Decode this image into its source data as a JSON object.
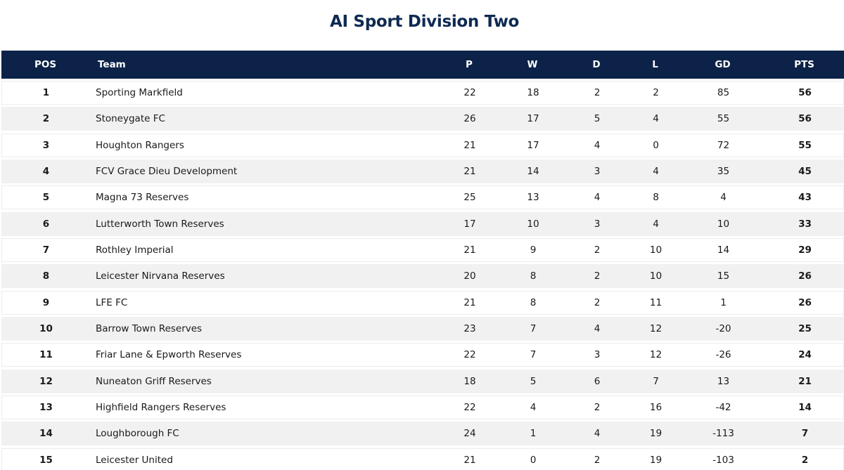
{
  "title": "AI Sport Division Two",
  "headers": {
    "pos": "POS",
    "team": "Team",
    "p": "P",
    "w": "W",
    "d": "D",
    "l": "L",
    "gd": "GD",
    "pts": "PTS"
  },
  "rows": [
    {
      "pos": "1",
      "team": "Sporting Markfield",
      "p": "22",
      "w": "18",
      "d": "2",
      "l": "2",
      "gd": "85",
      "pts": "56"
    },
    {
      "pos": "2",
      "team": "Stoneygate FC",
      "p": "26",
      "w": "17",
      "d": "5",
      "l": "4",
      "gd": "55",
      "pts": "56"
    },
    {
      "pos": "3",
      "team": "Houghton Rangers",
      "p": "21",
      "w": "17",
      "d": "4",
      "l": "0",
      "gd": "72",
      "pts": "55"
    },
    {
      "pos": "4",
      "team": "FCV Grace Dieu Development",
      "p": "21",
      "w": "14",
      "d": "3",
      "l": "4",
      "gd": "35",
      "pts": "45"
    },
    {
      "pos": "5",
      "team": "Magna 73 Reserves",
      "p": "25",
      "w": "13",
      "d": "4",
      "l": "8",
      "gd": "4",
      "pts": "43"
    },
    {
      "pos": "6",
      "team": "Lutterworth Town Reserves",
      "p": "17",
      "w": "10",
      "d": "3",
      "l": "4",
      "gd": "10",
      "pts": "33"
    },
    {
      "pos": "7",
      "team": "Rothley Imperial",
      "p": "21",
      "w": "9",
      "d": "2",
      "l": "10",
      "gd": "14",
      "pts": "29"
    },
    {
      "pos": "8",
      "team": "Leicester Nirvana Reserves",
      "p": "20",
      "w": "8",
      "d": "2",
      "l": "10",
      "gd": "15",
      "pts": "26"
    },
    {
      "pos": "9",
      "team": "LFE FC",
      "p": "21",
      "w": "8",
      "d": "2",
      "l": "11",
      "gd": "1",
      "pts": "26"
    },
    {
      "pos": "10",
      "team": "Barrow Town Reserves",
      "p": "23",
      "w": "7",
      "d": "4",
      "l": "12",
      "gd": "-20",
      "pts": "25"
    },
    {
      "pos": "11",
      "team": "Friar Lane & Epworth Reserves",
      "p": "22",
      "w": "7",
      "d": "3",
      "l": "12",
      "gd": "-26",
      "pts": "24"
    },
    {
      "pos": "12",
      "team": "Nuneaton Griff Reserves",
      "p": "18",
      "w": "5",
      "d": "6",
      "l": "7",
      "gd": "13",
      "pts": "21"
    },
    {
      "pos": "13",
      "team": "Highfield Rangers Reserves",
      "p": "22",
      "w": "4",
      "d": "2",
      "l": "16",
      "gd": "-42",
      "pts": "14"
    },
    {
      "pos": "14",
      "team": "Loughborough FC",
      "p": "24",
      "w": "1",
      "d": "4",
      "l": "19",
      "gd": "-113",
      "pts": "7"
    },
    {
      "pos": "15",
      "team": "Leicester United",
      "p": "21",
      "w": "0",
      "d": "2",
      "l": "19",
      "gd": "-103",
      "pts": "2"
    }
  ],
  "colors": {
    "header_bg": "#0c2248",
    "title": "#0e2a52",
    "row_alt": "#f1f1f1"
  }
}
